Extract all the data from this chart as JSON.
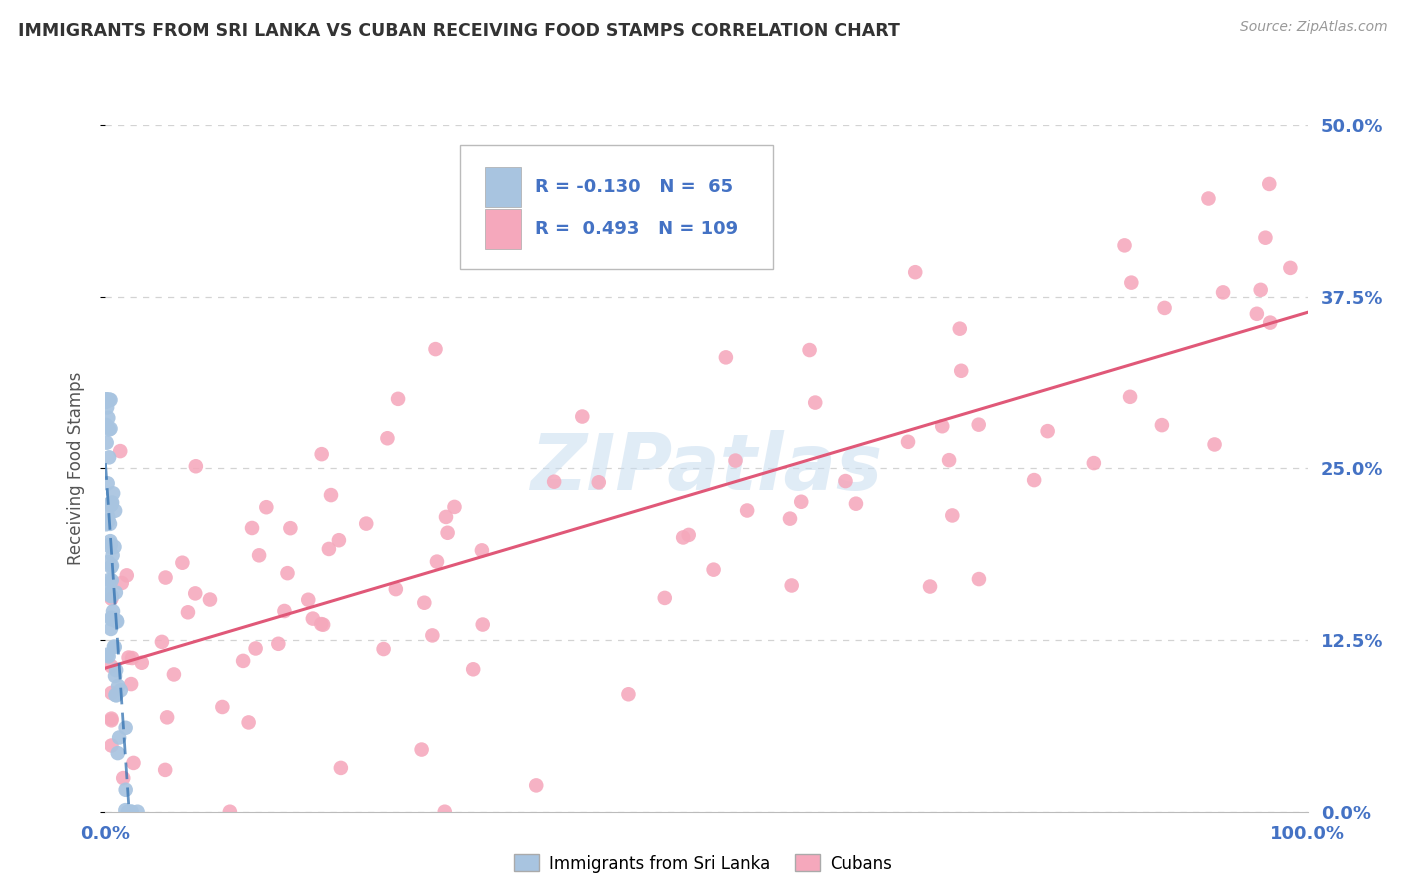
{
  "title": "IMMIGRANTS FROM SRI LANKA VS CUBAN RECEIVING FOOD STAMPS CORRELATION CHART",
  "source": "Source: ZipAtlas.com",
  "ylabel": "Receiving Food Stamps",
  "background_color": "#ffffff",
  "plot_bg_color": "#ffffff",
  "grid_color": "#c8c8c8",
  "sri_lanka_color": "#a8c4e0",
  "cuban_color": "#f5a8bc",
  "sri_lanka_line_color": "#3070b0",
  "cuban_line_color": "#e05878",
  "sri_lanka_R": -0.13,
  "sri_lanka_N": 65,
  "cuban_R": 0.493,
  "cuban_N": 109,
  "tick_label_color": "#4472c4",
  "title_color": "#333333",
  "watermark": "ZIPatlas",
  "xlim": [
    0.0,
    1.0
  ],
  "ylim": [
    0.0,
    0.5
  ],
  "yticks": [
    0.0,
    0.125,
    0.25,
    0.375,
    0.5
  ],
  "ytick_labels": [
    "0.0%",
    "12.5%",
    "25.0%",
    "37.5%",
    "50.0%"
  ],
  "xtick_labels": [
    "0.0%",
    "100.0%"
  ],
  "legend_sri_label": "R = -0.130   N =  65",
  "legend_cu_label": "R =  0.493   N = 109"
}
